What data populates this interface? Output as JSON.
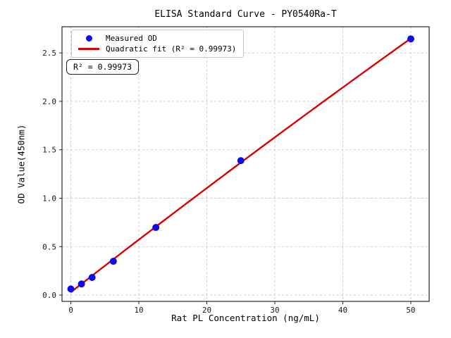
{
  "figure": {
    "title": "ELISA Standard Curve - PY0540Ra-T",
    "xlabel": "Rat PL Concentration (ng/mL)",
    "ylabel": "OD Value(450nm)",
    "legend": {
      "position": "upper left",
      "items": [
        {
          "marker": "dot",
          "label": "Measured OD"
        },
        {
          "marker": "line",
          "label": "Quadratic fit (R² = 0.99973)"
        }
      ]
    },
    "annotation": "R² = 0.99973"
  },
  "colors": {
    "measured_points": "#0d0de8",
    "fit_line": "#dc0000",
    "grid": "#c9c9c9",
    "axis": "#262626",
    "tick_label": "#1a1a1a"
  },
  "chart_data": {
    "type": "scatter",
    "title": "ELISA Standard Curve - PY0540Ra-T",
    "xlabel": "Rat PL Concentration (ng/mL)",
    "ylabel": "OD Value(450nm)",
    "grid": true,
    "legend_position": "upper left",
    "xlim": [
      -1.3,
      52.7
    ],
    "ylim": [
      -0.065,
      2.77
    ],
    "xticks": [
      0,
      10,
      20,
      30,
      40,
      50
    ],
    "xtick_labels": [
      "0",
      "10",
      "20",
      "30",
      "40",
      "50"
    ],
    "yticks": [
      0,
      0.5,
      1.0,
      1.5,
      2.0,
      2.5
    ],
    "ytick_labels": [
      "0.0",
      "0.5",
      "1.0",
      "1.5",
      "2.0",
      "2.5"
    ],
    "series": [
      {
        "name": "Measured OD",
        "type": "scatter",
        "x": [
          0,
          1.5625,
          3.125,
          6.25,
          12.5,
          25,
          50
        ],
        "y": [
          0.063,
          0.115,
          0.182,
          0.349,
          0.698,
          1.388,
          2.645
        ]
      },
      {
        "name": "Quadratic fit (R² = 0.99973)",
        "type": "quadratic_fit",
        "fit_of": "Measured OD",
        "r_squared": 0.99973,
        "fit_x_range": [
          0,
          50
        ]
      }
    ]
  }
}
